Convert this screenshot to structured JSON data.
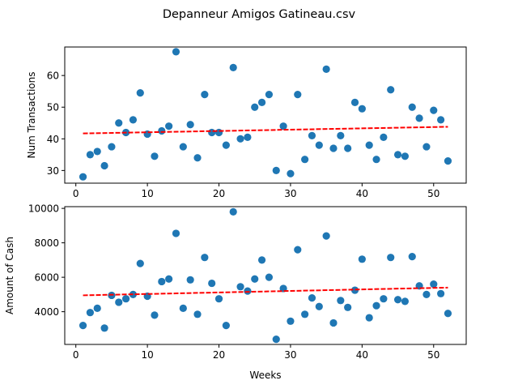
{
  "figure": {
    "title": "Depanneur Amigos Gatineau.csv",
    "xlabel": "Weeks"
  },
  "colors": {
    "points": "#1f77b4",
    "trend": "#ff0000",
    "axes": "#000000",
    "background": "#ffffff"
  },
  "chart_data": [
    {
      "type": "scatter",
      "title": "",
      "xlabel": "",
      "ylabel": "Num Transactions",
      "xlim": [
        -1.55,
        54.55
      ],
      "ylim": [
        26,
        69
      ],
      "xticks": [
        0,
        10,
        20,
        30,
        40,
        50
      ],
      "yticks": [
        30,
        40,
        50,
        60
      ],
      "ytick_labels": [
        "30",
        "40",
        "50",
        "60"
      ],
      "show_xtick_labels": true,
      "grid": false,
      "x": [
        1,
        2,
        3,
        4,
        5,
        6,
        7,
        8,
        9,
        10,
        11,
        12,
        13,
        14,
        15,
        16,
        17,
        18,
        19,
        20,
        21,
        22,
        23,
        24,
        25,
        26,
        27,
        28,
        29,
        30,
        31,
        32,
        33,
        34,
        35,
        36,
        37,
        38,
        39,
        40,
        41,
        42,
        43,
        44,
        45,
        46,
        47,
        48,
        49,
        50,
        51,
        52
      ],
      "y": [
        28,
        35,
        36,
        31.5,
        37.5,
        45,
        42,
        46,
        54.5,
        41.5,
        34.5,
        42.5,
        44,
        67.5,
        37.5,
        44.5,
        34,
        54,
        42,
        42,
        38,
        62.5,
        40,
        40.5,
        50,
        51.5,
        54,
        30,
        44,
        29,
        54,
        33.5,
        41,
        38,
        62,
        37,
        41,
        37,
        51.5,
        49.5,
        38,
        33.5,
        40.5,
        55.5,
        35,
        34.5,
        50,
        46.5,
        37.5,
        49,
        46,
        33
      ],
      "trend": {
        "x": [
          1,
          52
        ],
        "y": [
          41.7,
          43.8
        ]
      }
    },
    {
      "type": "scatter",
      "title": "",
      "xlabel": "Weeks",
      "ylabel": "Amount of Cash",
      "xlim": [
        -1.55,
        54.55
      ],
      "ylim": [
        2100,
        10100
      ],
      "xticks": [
        0,
        10,
        20,
        30,
        40,
        50
      ],
      "yticks": [
        4000,
        6000,
        8000,
        10000
      ],
      "ytick_labels": [
        "4000",
        "6000",
        "8000",
        "10000"
      ],
      "show_xtick_labels": true,
      "grid": false,
      "x": [
        1,
        2,
        3,
        4,
        5,
        6,
        7,
        8,
        9,
        10,
        11,
        12,
        13,
        14,
        15,
        16,
        17,
        18,
        19,
        20,
        21,
        22,
        23,
        24,
        25,
        26,
        27,
        28,
        29,
        30,
        31,
        32,
        33,
        34,
        35,
        36,
        37,
        38,
        39,
        40,
        41,
        42,
        43,
        44,
        45,
        46,
        47,
        48,
        49,
        50,
        51,
        52
      ],
      "y": [
        3200,
        3950,
        4200,
        3050,
        4950,
        4550,
        4750,
        5000,
        6800,
        4900,
        3800,
        5750,
        5900,
        8550,
        4200,
        5850,
        3850,
        7150,
        5650,
        4750,
        3200,
        9800,
        5450,
        5200,
        5900,
        7000,
        6000,
        2400,
        5350,
        3450,
        7600,
        3850,
        4800,
        4300,
        8400,
        3350,
        4650,
        4250,
        5250,
        7050,
        3650,
        4350,
        4750,
        7150,
        4700,
        4600,
        7200,
        5500,
        5000,
        5600,
        5050,
        3900
      ],
      "trend": {
        "x": [
          1,
          52
        ],
        "y": [
          4950,
          5400
        ]
      }
    }
  ]
}
